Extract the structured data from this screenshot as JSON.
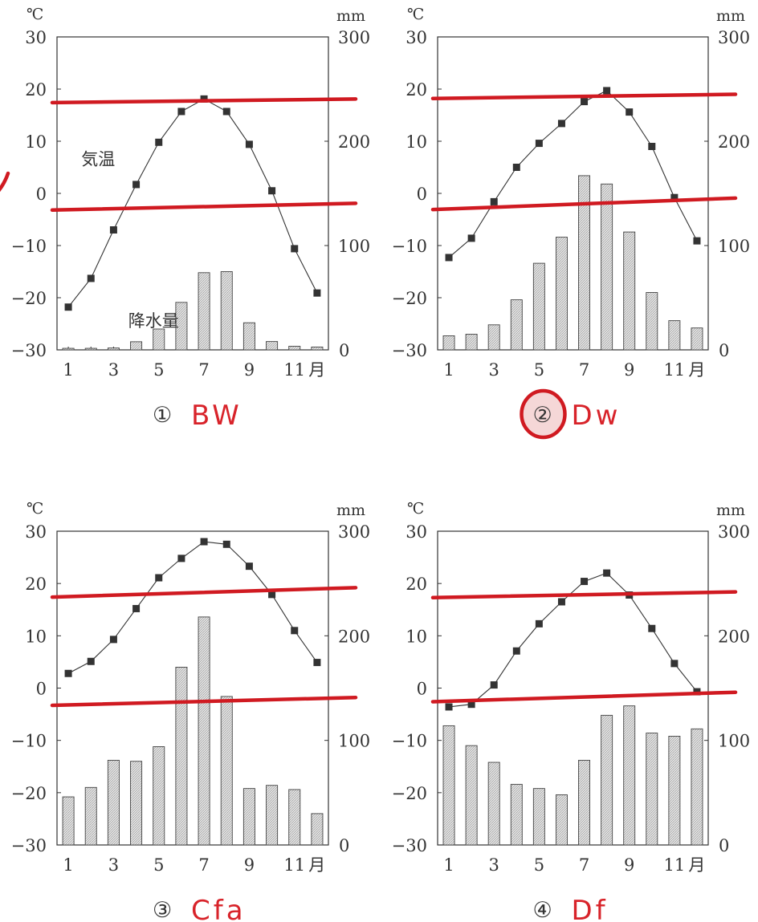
{
  "chart_data": [
    {
      "type": "bar+line",
      "number_label": "①",
      "answer": "BW",
      "temp_unit": "℃",
      "precip_unit": "mm",
      "temp_label": "気温",
      "precip_label": "降水量",
      "month_suffix": "月",
      "months": [
        1,
        2,
        3,
        4,
        5,
        6,
        7,
        8,
        9,
        10,
        11,
        12
      ],
      "x_tick_labels": [
        "1",
        "3",
        "5",
        "7",
        "9",
        "11"
      ],
      "temp_ticks": [
        "30",
        "20",
        "10",
        "0",
        "−10",
        "−20",
        "−30"
      ],
      "precip_ticks": [
        "300",
        "200",
        "100",
        "0"
      ],
      "temperature": [
        -21.8,
        -16.3,
        -7,
        1.7,
        9.8,
        15.7,
        18.1,
        15.7,
        9.4,
        0.5,
        -10.6,
        -19.1
      ],
      "precipitation": [
        1.5,
        1.5,
        1.8,
        7.8,
        20,
        45.5,
        74,
        75,
        26,
        8,
        3.5,
        2.7
      ],
      "ylim_temp": [
        -30,
        30
      ],
      "ylim_precip": [
        0,
        300
      ],
      "annotation_lines_temp": [
        [
          17.4,
          18.1
        ],
        [
          -3.2,
          -1.9
        ]
      ],
      "circled": false
    },
    {
      "type": "bar+line",
      "number_label": "②",
      "answer": "Dw",
      "temp_unit": "℃",
      "precip_unit": "mm",
      "temp_label": "",
      "precip_label": "",
      "month_suffix": "月",
      "months": [
        1,
        2,
        3,
        4,
        5,
        6,
        7,
        8,
        9,
        10,
        11,
        12
      ],
      "x_tick_labels": [
        "1",
        "3",
        "5",
        "7",
        "9",
        "11"
      ],
      "temp_ticks": [
        "30",
        "20",
        "10",
        "0",
        "−10",
        "−20",
        "−30"
      ],
      "precip_ticks": [
        "300",
        "200",
        "100",
        "0"
      ],
      "temperature": [
        -12.3,
        -8.6,
        -1.6,
        5,
        9.6,
        13.4,
        17.6,
        19.7,
        15.6,
        9,
        -0.8,
        -9.1
      ],
      "precipitation": [
        13.5,
        15,
        24,
        48,
        83,
        108,
        167,
        159,
        113,
        55,
        28,
        21
      ],
      "ylim_temp": [
        -30,
        30
      ],
      "ylim_precip": [
        0,
        300
      ],
      "annotation_lines_temp": [
        [
          18.2,
          19
        ],
        [
          -3.1,
          -0.9
        ]
      ],
      "circled": true
    },
    {
      "type": "bar+line",
      "number_label": "③",
      "answer": "Cfa",
      "temp_unit": "℃",
      "precip_unit": "mm",
      "temp_label": "",
      "precip_label": "",
      "month_suffix": "月",
      "months": [
        1,
        2,
        3,
        4,
        5,
        6,
        7,
        8,
        9,
        10,
        11,
        12
      ],
      "x_tick_labels": [
        "1",
        "3",
        "5",
        "7",
        "9",
        "11"
      ],
      "temp_ticks": [
        "30",
        "20",
        "10",
        "0",
        "−10",
        "−20",
        "−30"
      ],
      "precip_ticks": [
        "300",
        "200",
        "100",
        "0"
      ],
      "temperature": [
        2.8,
        5.1,
        9.3,
        15.2,
        21.1,
        24.8,
        28,
        27.5,
        23.3,
        17.9,
        11,
        4.9
      ],
      "precipitation": [
        46,
        55,
        81,
        80,
        94,
        170,
        218,
        142,
        54,
        57,
        53,
        30
      ],
      "ylim_temp": [
        -30,
        30
      ],
      "ylim_precip": [
        0,
        300
      ],
      "annotation_lines_temp": [
        [
          17.4,
          19.2
        ],
        [
          -3.3,
          -1.8
        ]
      ],
      "circled": false
    },
    {
      "type": "bar+line",
      "number_label": "④",
      "answer": "Df",
      "temp_unit": "℃",
      "precip_unit": "mm",
      "temp_label": "",
      "precip_label": "",
      "month_suffix": "月",
      "months": [
        1,
        2,
        3,
        4,
        5,
        6,
        7,
        8,
        9,
        10,
        11,
        12
      ],
      "x_tick_labels": [
        "1",
        "3",
        "5",
        "7",
        "9",
        "11"
      ],
      "temp_ticks": [
        "30",
        "20",
        "10",
        "0",
        "−10",
        "−20",
        "−30"
      ],
      "precip_ticks": [
        "300",
        "200",
        "100",
        "0"
      ],
      "temperature": [
        -3.6,
        -3.1,
        0.6,
        7.1,
        12.3,
        16.5,
        20.4,
        22,
        17.8,
        11.4,
        4.7,
        -0.7
      ],
      "precipitation": [
        114,
        95,
        79,
        58,
        54,
        48,
        81,
        124,
        133,
        107,
        104,
        111
      ],
      "ylim_temp": [
        -30,
        30
      ],
      "ylim_precip": [
        0,
        300
      ],
      "annotation_lines_temp": [
        [
          17.3,
          18.4
        ],
        [
          -2.6,
          -0.8
        ]
      ],
      "circled": false
    }
  ]
}
